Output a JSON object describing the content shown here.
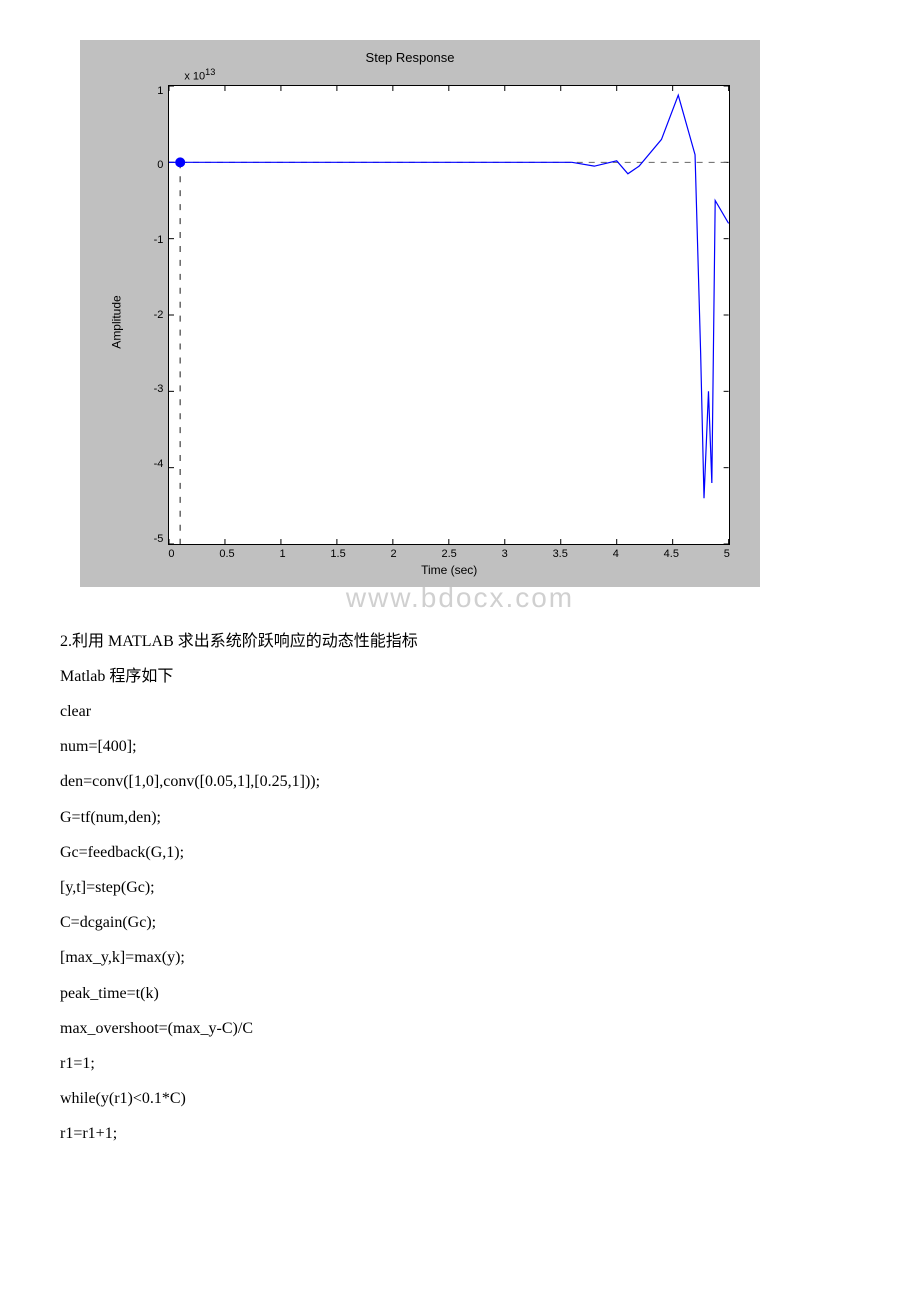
{
  "chart": {
    "type": "line",
    "title": "Step Response",
    "ylabel": "Amplitude",
    "xlabel": "Time (sec)",
    "yexp": "x 10",
    "yexp_power": "13",
    "background_color": "#c0c0c0",
    "plot_bg": "#ffffff",
    "line_color": "#0000ff",
    "dash_color": "#666666",
    "marker_color": "#0000ff",
    "xlim": [
      0,
      5
    ],
    "ylim": [
      -5,
      1
    ],
    "yticks": [
      "1",
      "0",
      "-1",
      "-2",
      "-3",
      "-4",
      "-5"
    ],
    "xticks": [
      "0",
      "0.5",
      "1",
      "1.5",
      "2",
      "2.5",
      "3",
      "3.5",
      "4",
      "4.5",
      "5"
    ],
    "line_width": 1.2,
    "marker_x": 0.1,
    "marker_y": 0,
    "hline_y": 0,
    "vline_x": 0.1,
    "data_x": [
      0,
      0.1,
      3.6,
      3.8,
      4.0,
      4.1,
      4.2,
      4.4,
      4.55,
      4.7,
      4.75,
      4.78,
      4.82,
      4.85,
      4.88,
      5.0
    ],
    "data_y": [
      0,
      0,
      0,
      -0.05,
      0.02,
      -0.15,
      -0.05,
      0.3,
      0.88,
      0.1,
      -2.5,
      -4.4,
      -3.0,
      -4.2,
      -0.5,
      -0.8
    ]
  },
  "text": {
    "line1": "2.利用 MATLAB 求出系统阶跃响应的动态性能指标",
    "line2": "Matlab 程序如下"
  },
  "code": [
    "clear",
    "num=[400];",
    "den=conv([1,0],conv([0.05,1],[0.25,1]));",
    "G=tf(num,den);",
    "Gc=feedback(G,1);",
    "[y,t]=step(Gc);",
    "C=dcgain(Gc);",
    "[max_y,k]=max(y);",
    "peak_time=t(k)",
    "max_overshoot=(max_y-C)/C",
    "r1=1;",
    "while(y(r1)<0.1*C)",
    "r1=r1+1;"
  ],
  "watermark": "www.bdocx.com"
}
